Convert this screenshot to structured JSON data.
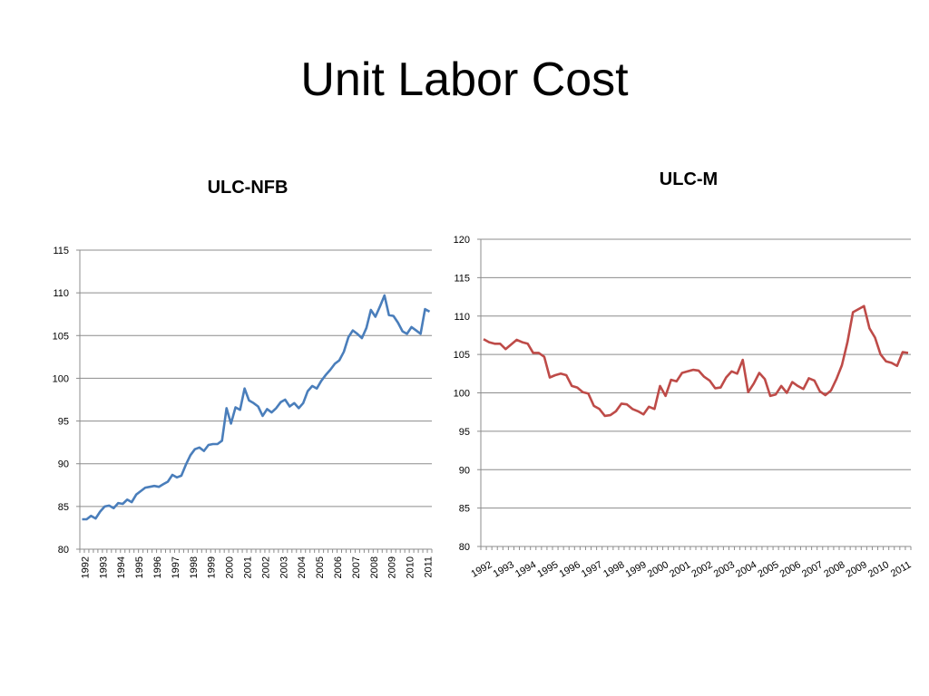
{
  "slide": {
    "title": "Unit Labor Cost"
  },
  "chart_data": [
    {
      "type": "line",
      "title": "ULC-NFB",
      "xlabel": "",
      "ylabel": "",
      "ylim": [
        80,
        115
      ],
      "yticks": [
        80,
        85,
        90,
        95,
        100,
        105,
        110,
        115
      ],
      "xtick_labels": [
        "1992",
        "1993",
        "1994",
        "1995",
        "1996",
        "1997",
        "1998",
        "1999",
        "2000",
        "2001",
        "2002",
        "2003",
        "2004",
        "2005",
        "2006",
        "2007",
        "2008",
        "2009",
        "2010",
        "2011"
      ],
      "x_tick_rotation": "vertical",
      "grid": "horizontal",
      "color": "#4a7ebb",
      "series": [
        {
          "frequency": "quarterly",
          "start": "1992 Q1",
          "values": [
            83.5,
            83.5,
            83.9,
            83.6,
            84.4,
            85.0,
            85.1,
            84.8,
            85.4,
            85.3,
            85.8,
            85.5,
            86.4,
            86.8,
            87.2,
            87.3,
            87.4,
            87.3,
            87.6,
            87.9,
            88.7,
            88.4,
            88.6,
            89.9,
            91.0,
            91.7,
            91.9,
            91.5,
            92.2,
            92.3,
            92.3,
            92.7,
            96.5,
            94.7,
            96.6,
            96.3,
            98.8,
            97.4,
            97.1,
            96.7,
            95.6,
            96.4,
            96.0,
            96.5,
            97.2,
            97.5,
            96.7,
            97.1,
            96.5,
            97.1,
            98.5,
            99.1,
            98.8,
            99.7,
            100.4,
            101.0,
            101.7,
            102.1,
            103.1,
            104.8,
            105.6,
            105.2,
            104.7,
            105.9,
            108.0,
            107.2,
            108.4,
            109.7,
            107.4,
            107.3,
            106.5,
            105.5,
            105.2,
            106.0,
            105.6,
            105.2,
            108.1,
            107.8
          ]
        }
      ]
    },
    {
      "type": "line",
      "title": "ULC-M",
      "xlabel": "",
      "ylabel": "",
      "ylim": [
        80,
        120
      ],
      "yticks": [
        80,
        85,
        90,
        95,
        100,
        105,
        110,
        115,
        120
      ],
      "xtick_labels": [
        "1992",
        "1993",
        "1994",
        "1995",
        "1996",
        "1997",
        "1998",
        "1999",
        "2000",
        "2001",
        "2002",
        "2003",
        "2004",
        "2005",
        "2006",
        "2007",
        "2008",
        "2009",
        "2010",
        "2011"
      ],
      "x_tick_rotation": "diagonal",
      "grid": "horizontal",
      "color": "#be4b48",
      "series": [
        {
          "frequency": "quarterly",
          "start": "1992 Q1",
          "values": [
            107.0,
            106.6,
            106.4,
            106.4,
            105.7,
            106.3,
            106.9,
            106.6,
            106.4,
            105.2,
            105.2,
            104.7,
            102.0,
            102.3,
            102.5,
            102.3,
            100.9,
            100.7,
            100.1,
            99.9,
            98.3,
            97.9,
            97.0,
            97.1,
            97.6,
            98.6,
            98.5,
            97.9,
            97.6,
            97.2,
            98.2,
            97.9,
            100.9,
            99.6,
            101.7,
            101.5,
            102.6,
            102.8,
            103.0,
            102.9,
            102.1,
            101.6,
            100.6,
            100.7,
            102.0,
            102.8,
            102.5,
            104.3,
            100.1,
            101.2,
            102.6,
            101.8,
            99.6,
            99.8,
            100.9,
            100.0,
            101.4,
            100.9,
            100.5,
            101.9,
            101.6,
            100.2,
            99.7,
            100.3,
            101.8,
            103.6,
            106.6,
            110.5,
            110.9,
            111.3,
            108.4,
            107.2,
            105.0,
            104.1,
            103.9,
            103.5,
            105.3,
            105.2
          ]
        }
      ]
    }
  ]
}
